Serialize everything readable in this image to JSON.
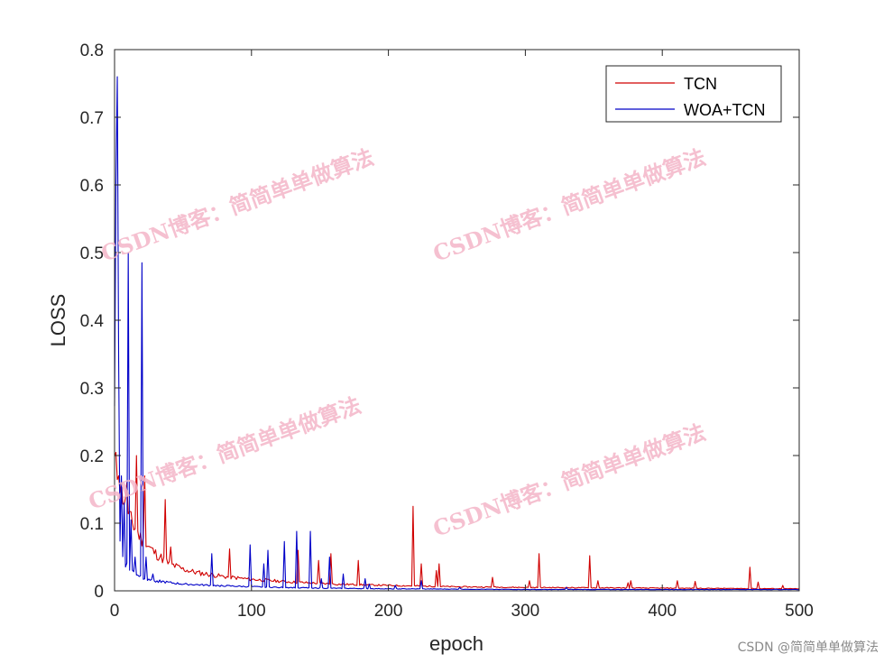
{
  "chart_data": {
    "type": "line",
    "xlabel": "epoch",
    "ylabel": "LOSS",
    "xlim": [
      0,
      500
    ],
    "ylim": [
      0,
      0.8
    ],
    "xticks": [
      "0",
      "100",
      "200",
      "300",
      "400",
      "500"
    ],
    "yticks": [
      "0",
      "0.1",
      "0.2",
      "0.3",
      "0.4",
      "0.5",
      "0.6",
      "0.7",
      "0.8"
    ],
    "grid": false,
    "legend_position": "top-right",
    "series": [
      {
        "name": "TCN",
        "color": "#d00000",
        "baseline": {
          "x": [
            0,
            2,
            5,
            10,
            20,
            30,
            40,
            50,
            60,
            80,
            100,
            130,
            160,
            200,
            250,
            300,
            400,
            500
          ],
          "y": [
            0.19,
            0.175,
            0.15,
            0.11,
            0.075,
            0.055,
            0.04,
            0.032,
            0.027,
            0.021,
            0.017,
            0.013,
            0.01,
            0.008,
            0.006,
            0.005,
            0.004,
            0.003
          ]
        },
        "spikes": {
          "x": [
            3,
            9,
            16,
            22,
            37,
            41,
            84,
            134,
            149,
            158,
            178,
            218,
            224,
            235,
            237,
            276,
            303,
            310,
            347,
            353,
            375,
            377,
            411,
            424,
            464,
            470,
            488
          ],
          "y": [
            0.17,
            0.16,
            0.2,
            0.17,
            0.135,
            0.065,
            0.062,
            0.06,
            0.045,
            0.055,
            0.045,
            0.125,
            0.04,
            0.03,
            0.04,
            0.02,
            0.015,
            0.055,
            0.052,
            0.015,
            0.012,
            0.015,
            0.015,
            0.014,
            0.035,
            0.013,
            0.008
          ]
        }
      },
      {
        "name": "WOA+TCN",
        "color": "#0000c8",
        "baseline": {
          "x": [
            0,
            2,
            4,
            6,
            8,
            12,
            16,
            20,
            30,
            40,
            50,
            70,
            100,
            150,
            200,
            300,
            500
          ],
          "y": [
            0.25,
            0.12,
            0.07,
            0.05,
            0.04,
            0.03,
            0.025,
            0.02,
            0.015,
            0.012,
            0.01,
            0.008,
            0.006,
            0.004,
            0.003,
            0.002,
            0.002
          ]
        },
        "spikes": {
          "x": [
            1,
            2,
            3,
            5,
            7,
            10,
            12,
            15,
            20,
            23,
            28,
            53,
            71,
            99,
            109,
            112,
            124,
            133,
            143,
            151,
            157,
            167,
            183,
            186,
            205,
            224,
            252,
            330
          ],
          "y": [
            0.6,
            0.76,
            0.34,
            0.17,
            0.13,
            0.5,
            0.105,
            0.05,
            0.485,
            0.05,
            0.025,
            0.01,
            0.055,
            0.068,
            0.04,
            0.06,
            0.073,
            0.088,
            0.088,
            0.018,
            0.05,
            0.025,
            0.018,
            0.01,
            0.008,
            0.015,
            0.005,
            0.005
          ]
        }
      }
    ]
  },
  "watermarks": [
    "CSDN博客：简简单单做算法",
    "CSDN博客：简简单单做算法",
    "CSDN博客：简简单单做算法",
    "CSDN博客：简简单单做算法"
  ],
  "credit": "CSDN @简简单单做算法"
}
